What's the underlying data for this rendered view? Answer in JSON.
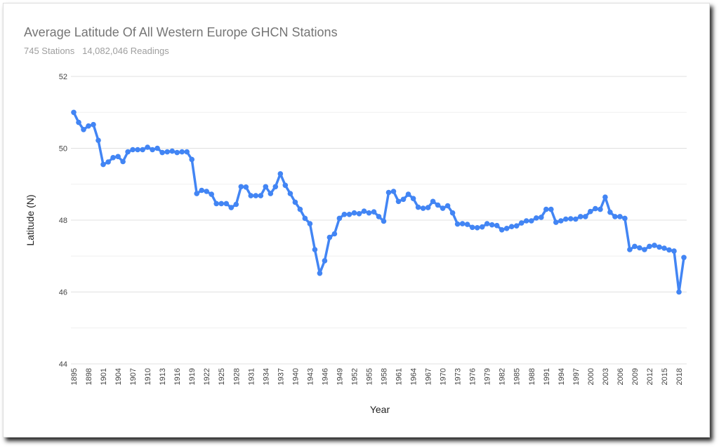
{
  "chart_data": {
    "type": "line",
    "title": "Average Latitude Of All Western Europe GHCN Stations",
    "subtitle": "745 Stations   14,082,046 Readings",
    "xlabel": "Year",
    "ylabel": "Latitude (N)",
    "ylim": [
      44,
      52
    ],
    "yticks": [
      44,
      46,
      48,
      50,
      52
    ],
    "xlim": [
      1895,
      2019
    ],
    "xticks": [
      1895,
      1898,
      1901,
      1904,
      1907,
      1910,
      1913,
      1916,
      1919,
      1922,
      1925,
      1928,
      1931,
      1934,
      1937,
      1940,
      1943,
      1946,
      1949,
      1952,
      1955,
      1958,
      1961,
      1964,
      1967,
      1970,
      1973,
      1976,
      1979,
      1982,
      1985,
      1988,
      1991,
      1994,
      1997,
      2000,
      2003,
      2006,
      2009,
      2012,
      2015,
      2018
    ],
    "grid": true,
    "legend": "none",
    "color": "#4285f4",
    "x_start": 1895,
    "values": [
      51.0,
      50.72,
      50.52,
      50.62,
      50.66,
      50.22,
      49.55,
      49.62,
      49.74,
      49.77,
      49.63,
      49.9,
      49.96,
      49.96,
      49.96,
      50.03,
      49.96,
      50.0,
      49.88,
      49.9,
      49.92,
      49.88,
      49.9,
      49.9,
      49.69,
      48.74,
      48.83,
      48.8,
      48.72,
      48.46,
      48.46,
      48.46,
      48.35,
      48.44,
      48.93,
      48.92,
      48.68,
      48.68,
      48.68,
      48.93,
      48.74,
      48.93,
      49.29,
      48.97,
      48.74,
      48.5,
      48.3,
      48.05,
      47.9,
      47.18,
      46.52,
      46.87,
      47.52,
      47.62,
      48.05,
      48.16,
      48.16,
      48.2,
      48.18,
      48.25,
      48.2,
      48.23,
      48.1,
      47.97,
      48.77,
      48.8,
      48.52,
      48.58,
      48.72,
      48.6,
      48.36,
      48.33,
      48.35,
      48.52,
      48.42,
      48.33,
      48.4,
      48.2,
      47.89,
      47.9,
      47.88,
      47.8,
      47.79,
      47.81,
      47.9,
      47.87,
      47.85,
      47.73,
      47.77,
      47.82,
      47.84,
      47.92,
      47.98,
      47.98,
      48.06,
      48.08,
      48.3,
      48.3,
      47.94,
      47.98,
      48.03,
      48.04,
      48.03,
      48.1,
      48.1,
      48.24,
      48.32,
      48.3,
      48.64,
      48.22,
      48.1,
      48.1,
      48.05,
      47.18,
      47.27,
      47.23,
      47.18,
      47.27,
      47.3,
      47.25,
      47.22,
      47.17,
      47.14,
      46.0,
      46.96
    ]
  }
}
